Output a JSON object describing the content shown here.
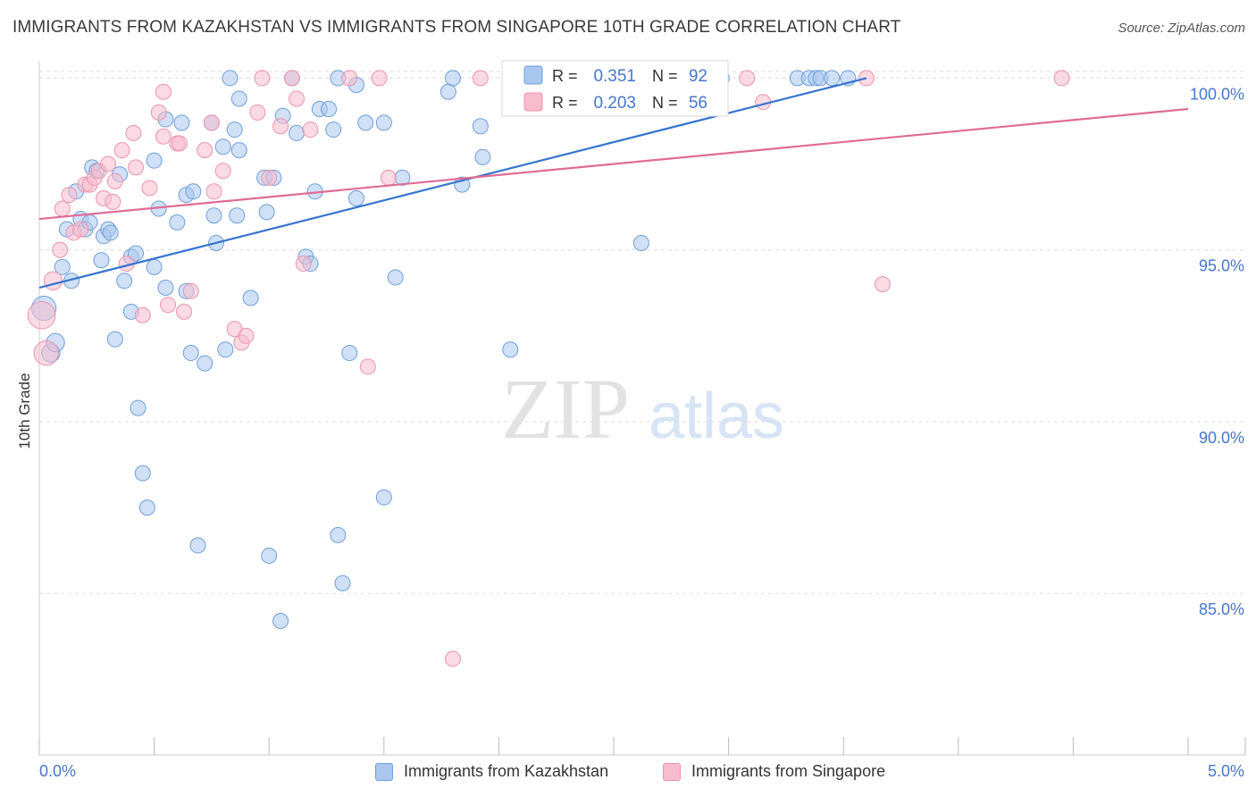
{
  "title": "IMMIGRANTS FROM KAZAKHSTAN VS IMMIGRANTS FROM SINGAPORE 10TH GRADE CORRELATION CHART",
  "source": "Source: ZipAtlas.com",
  "watermark": {
    "zip": "ZIP",
    "atlas": "atlas"
  },
  "colors": {
    "blue_fill": "#a9c7ef",
    "blue_stroke": "#6f9fd8",
    "blue_line": "#3674cf",
    "pink_fill": "#f7bccd",
    "pink_stroke": "#ec93ae",
    "pink_line": "#e06b94",
    "axis_text": "#4477cc",
    "grid": "#dddddd"
  },
  "stats": [
    {
      "r_label": "R =",
      "r_value": "0.351",
      "n_label": "N =",
      "n_value": "92",
      "color": "blue"
    },
    {
      "r_label": "R =",
      "r_value": "0.203",
      "n_label": "N =",
      "n_value": "56",
      "color": "pink"
    }
  ],
  "chart_data": {
    "type": "scatter",
    "title": "IMMIGRANTS FROM KAZAKHSTAN VS IMMIGRANTS FROM SINGAPORE 10TH GRADE CORRELATION CHART",
    "xlabel": "",
    "ylabel": "10th Grade",
    "xlim": [
      0,
      5
    ],
    "ylim": [
      80.3,
      100.4
    ],
    "x_tick_labels": [
      "0.0%",
      "5.0%"
    ],
    "y_ticks": [
      85,
      90,
      95,
      100
    ],
    "y_tick_labels": [
      "85.0%",
      "90.0%",
      "95.0%",
      "100.0%"
    ],
    "grid": true,
    "legend_position": "bottom",
    "series": [
      {
        "name": "Immigrants from Kazakhstan",
        "color": "blue",
        "trend": [
          [
            0,
            93.9
          ],
          [
            3.6,
            100.0
          ]
        ],
        "points": [
          [
            0.02,
            93.3,
            1.6
          ],
          [
            0.05,
            92.0,
            1.2
          ],
          [
            0.07,
            92.3,
            1.2
          ],
          [
            0.1,
            94.5,
            1
          ],
          [
            0.12,
            95.6,
            1
          ],
          [
            0.14,
            94.1,
            1
          ],
          [
            0.16,
            96.7,
            1
          ],
          [
            0.18,
            95.9,
            1
          ],
          [
            0.2,
            95.6,
            1
          ],
          [
            0.22,
            95.8,
            1
          ],
          [
            0.23,
            97.4,
            1
          ],
          [
            0.25,
            97.3,
            1
          ],
          [
            0.27,
            94.7,
            1
          ],
          [
            0.28,
            95.4,
            1
          ],
          [
            0.3,
            95.6,
            1
          ],
          [
            0.31,
            95.5,
            1
          ],
          [
            0.33,
            92.4,
            1
          ],
          [
            0.35,
            97.2,
            1
          ],
          [
            0.37,
            94.1,
            1
          ],
          [
            0.4,
            94.8,
            1
          ],
          [
            0.4,
            93.2,
            1
          ],
          [
            0.42,
            94.9,
            1
          ],
          [
            0.43,
            90.4,
            1
          ],
          [
            0.45,
            88.5,
            1
          ],
          [
            0.47,
            87.5,
            1
          ],
          [
            0.5,
            94.5,
            1
          ],
          [
            0.5,
            97.6,
            1
          ],
          [
            0.52,
            96.2,
            1
          ],
          [
            0.55,
            98.8,
            1
          ],
          [
            0.55,
            93.9,
            1
          ],
          [
            0.6,
            95.8,
            1
          ],
          [
            0.62,
            98.7,
            1
          ],
          [
            0.64,
            93.8,
            1
          ],
          [
            0.64,
            96.6,
            1
          ],
          [
            0.66,
            92.0,
            1
          ],
          [
            0.67,
            96.7,
            1
          ],
          [
            0.69,
            86.4,
            1
          ],
          [
            0.72,
            91.7,
            1
          ],
          [
            0.75,
            98.7,
            1
          ],
          [
            0.76,
            96.0,
            1
          ],
          [
            0.77,
            95.2,
            1
          ],
          [
            0.8,
            98.0,
            1
          ],
          [
            0.81,
            92.1,
            1
          ],
          [
            0.83,
            100.0,
            1
          ],
          [
            0.85,
            98.5,
            1
          ],
          [
            0.86,
            96.0,
            1
          ],
          [
            0.87,
            99.4,
            1
          ],
          [
            0.87,
            97.9,
            1
          ],
          [
            0.92,
            93.6,
            1
          ],
          [
            0.98,
            97.1,
            1
          ],
          [
            0.99,
            96.1,
            1
          ],
          [
            1.0,
            86.1,
            1
          ],
          [
            1.02,
            97.1,
            1
          ],
          [
            1.05,
            84.2,
            1
          ],
          [
            1.06,
            98.9,
            1
          ],
          [
            1.12,
            98.4,
            1
          ],
          [
            1.1,
            100.0,
            1
          ],
          [
            1.16,
            94.8,
            1
          ],
          [
            1.18,
            94.6,
            1
          ],
          [
            1.2,
            96.7,
            1
          ],
          [
            1.22,
            99.1,
            1
          ],
          [
            1.26,
            99.1,
            1
          ],
          [
            1.28,
            98.5,
            1
          ],
          [
            1.3,
            86.7,
            1
          ],
          [
            1.3,
            100.0,
            1
          ],
          [
            1.32,
            85.3,
            1
          ],
          [
            1.35,
            92.0,
            1
          ],
          [
            1.38,
            99.8,
            1
          ],
          [
            1.38,
            96.5,
            1
          ],
          [
            1.42,
            98.7,
            1
          ],
          [
            1.5,
            98.7,
            1
          ],
          [
            1.5,
            87.8,
            1
          ],
          [
            1.55,
            94.2,
            1
          ],
          [
            1.58,
            97.1,
            1
          ],
          [
            1.78,
            99.6,
            1
          ],
          [
            1.8,
            100.0,
            1
          ],
          [
            1.84,
            96.9,
            1
          ],
          [
            1.92,
            98.6,
            1
          ],
          [
            1.93,
            97.7,
            1
          ],
          [
            2.05,
            92.1,
            1
          ],
          [
            2.3,
            99.2,
            1
          ],
          [
            2.5,
            100.0,
            1
          ],
          [
            2.6,
            99.7,
            1
          ],
          [
            2.62,
            95.2,
            1
          ],
          [
            2.72,
            100.0,
            1
          ],
          [
            2.97,
            100.0,
            1
          ],
          [
            3.3,
            100.0,
            1
          ],
          [
            3.35,
            100.0,
            1
          ],
          [
            3.38,
            100.0,
            1
          ],
          [
            3.4,
            100.0,
            1
          ],
          [
            3.45,
            100.0,
            1
          ],
          [
            3.52,
            100.0,
            1
          ]
        ]
      },
      {
        "name": "Immigrants from Singapore",
        "color": "pink",
        "trend": [
          [
            0,
            95.9
          ],
          [
            5.0,
            99.1
          ]
        ],
        "points": [
          [
            0.01,
            93.1,
            1.8
          ],
          [
            0.03,
            92.0,
            1.6
          ],
          [
            0.06,
            94.1,
            1.2
          ],
          [
            0.09,
            95.0,
            1
          ],
          [
            0.1,
            96.2,
            1
          ],
          [
            0.13,
            96.6,
            1
          ],
          [
            0.15,
            95.5,
            1
          ],
          [
            0.18,
            95.6,
            1
          ],
          [
            0.2,
            96.9,
            1
          ],
          [
            0.22,
            96.9,
            1
          ],
          [
            0.24,
            97.1,
            1
          ],
          [
            0.26,
            97.3,
            1
          ],
          [
            0.28,
            96.5,
            1
          ],
          [
            0.3,
            97.5,
            1
          ],
          [
            0.32,
            96.4,
            1
          ],
          [
            0.33,
            97.0,
            1
          ],
          [
            0.36,
            97.9,
            1
          ],
          [
            0.38,
            94.6,
            1
          ],
          [
            0.41,
            98.4,
            1
          ],
          [
            0.42,
            97.4,
            1
          ],
          [
            0.45,
            93.1,
            1
          ],
          [
            0.48,
            96.8,
            1
          ],
          [
            0.52,
            99.0,
            1
          ],
          [
            0.54,
            98.3,
            1
          ],
          [
            0.54,
            99.6,
            1
          ],
          [
            0.56,
            93.4,
            1
          ],
          [
            0.6,
            98.1,
            1
          ],
          [
            0.61,
            98.1,
            1
          ],
          [
            0.63,
            93.2,
            1
          ],
          [
            0.66,
            93.8,
            1
          ],
          [
            0.72,
            97.9,
            1
          ],
          [
            0.75,
            98.7,
            1
          ],
          [
            0.76,
            96.7,
            1
          ],
          [
            0.8,
            97.3,
            1
          ],
          [
            0.85,
            92.7,
            1
          ],
          [
            0.88,
            92.3,
            1
          ],
          [
            0.9,
            92.5,
            1
          ],
          [
            0.95,
            99.0,
            1
          ],
          [
            0.97,
            100.0,
            1
          ],
          [
            1.0,
            97.1,
            1
          ],
          [
            1.05,
            98.6,
            1
          ],
          [
            1.1,
            100.0,
            1
          ],
          [
            1.12,
            99.4,
            1
          ],
          [
            1.15,
            94.6,
            1
          ],
          [
            1.18,
            98.5,
            1
          ],
          [
            1.35,
            100.0,
            1
          ],
          [
            1.43,
            91.6,
            1
          ],
          [
            1.48,
            100.0,
            1
          ],
          [
            1.52,
            97.1,
            1
          ],
          [
            1.8,
            83.1,
            1
          ],
          [
            1.92,
            100.0,
            1
          ],
          [
            3.08,
            100.0,
            1
          ],
          [
            3.15,
            99.3,
            1
          ],
          [
            3.6,
            100.0,
            1
          ],
          [
            3.67,
            94.0,
            1
          ],
          [
            4.45,
            100.0,
            1
          ]
        ]
      }
    ]
  }
}
